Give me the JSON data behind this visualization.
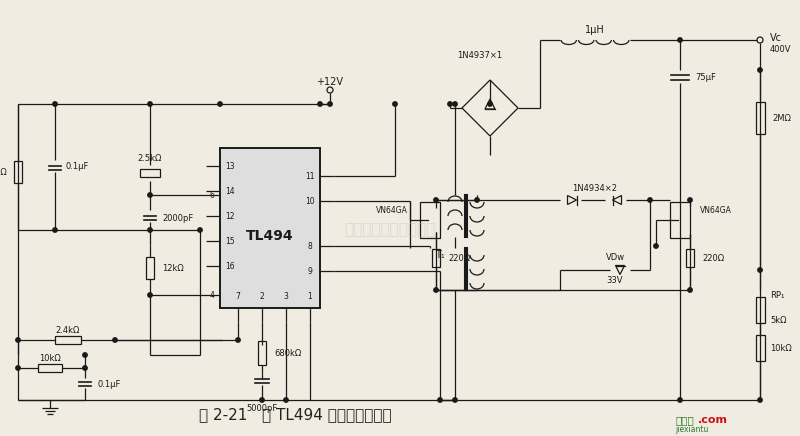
{
  "title": "图 2-21   用 TL494 构成的高压电路",
  "background_color": "#f0ece2",
  "circuit_bg": "#f0ece2",
  "line_color": "#1a1a1a",
  "fig_width": 8.0,
  "fig_height": 4.36,
  "watermark": "杭州将睿科技有限公司",
  "logo_cn": "接线图",
  "logo_en": "jiexiantu",
  "logo_suffix": ".com",
  "logo_green": "#2d7a2d",
  "logo_red": "#cc1111",
  "caption_color": "#222222"
}
